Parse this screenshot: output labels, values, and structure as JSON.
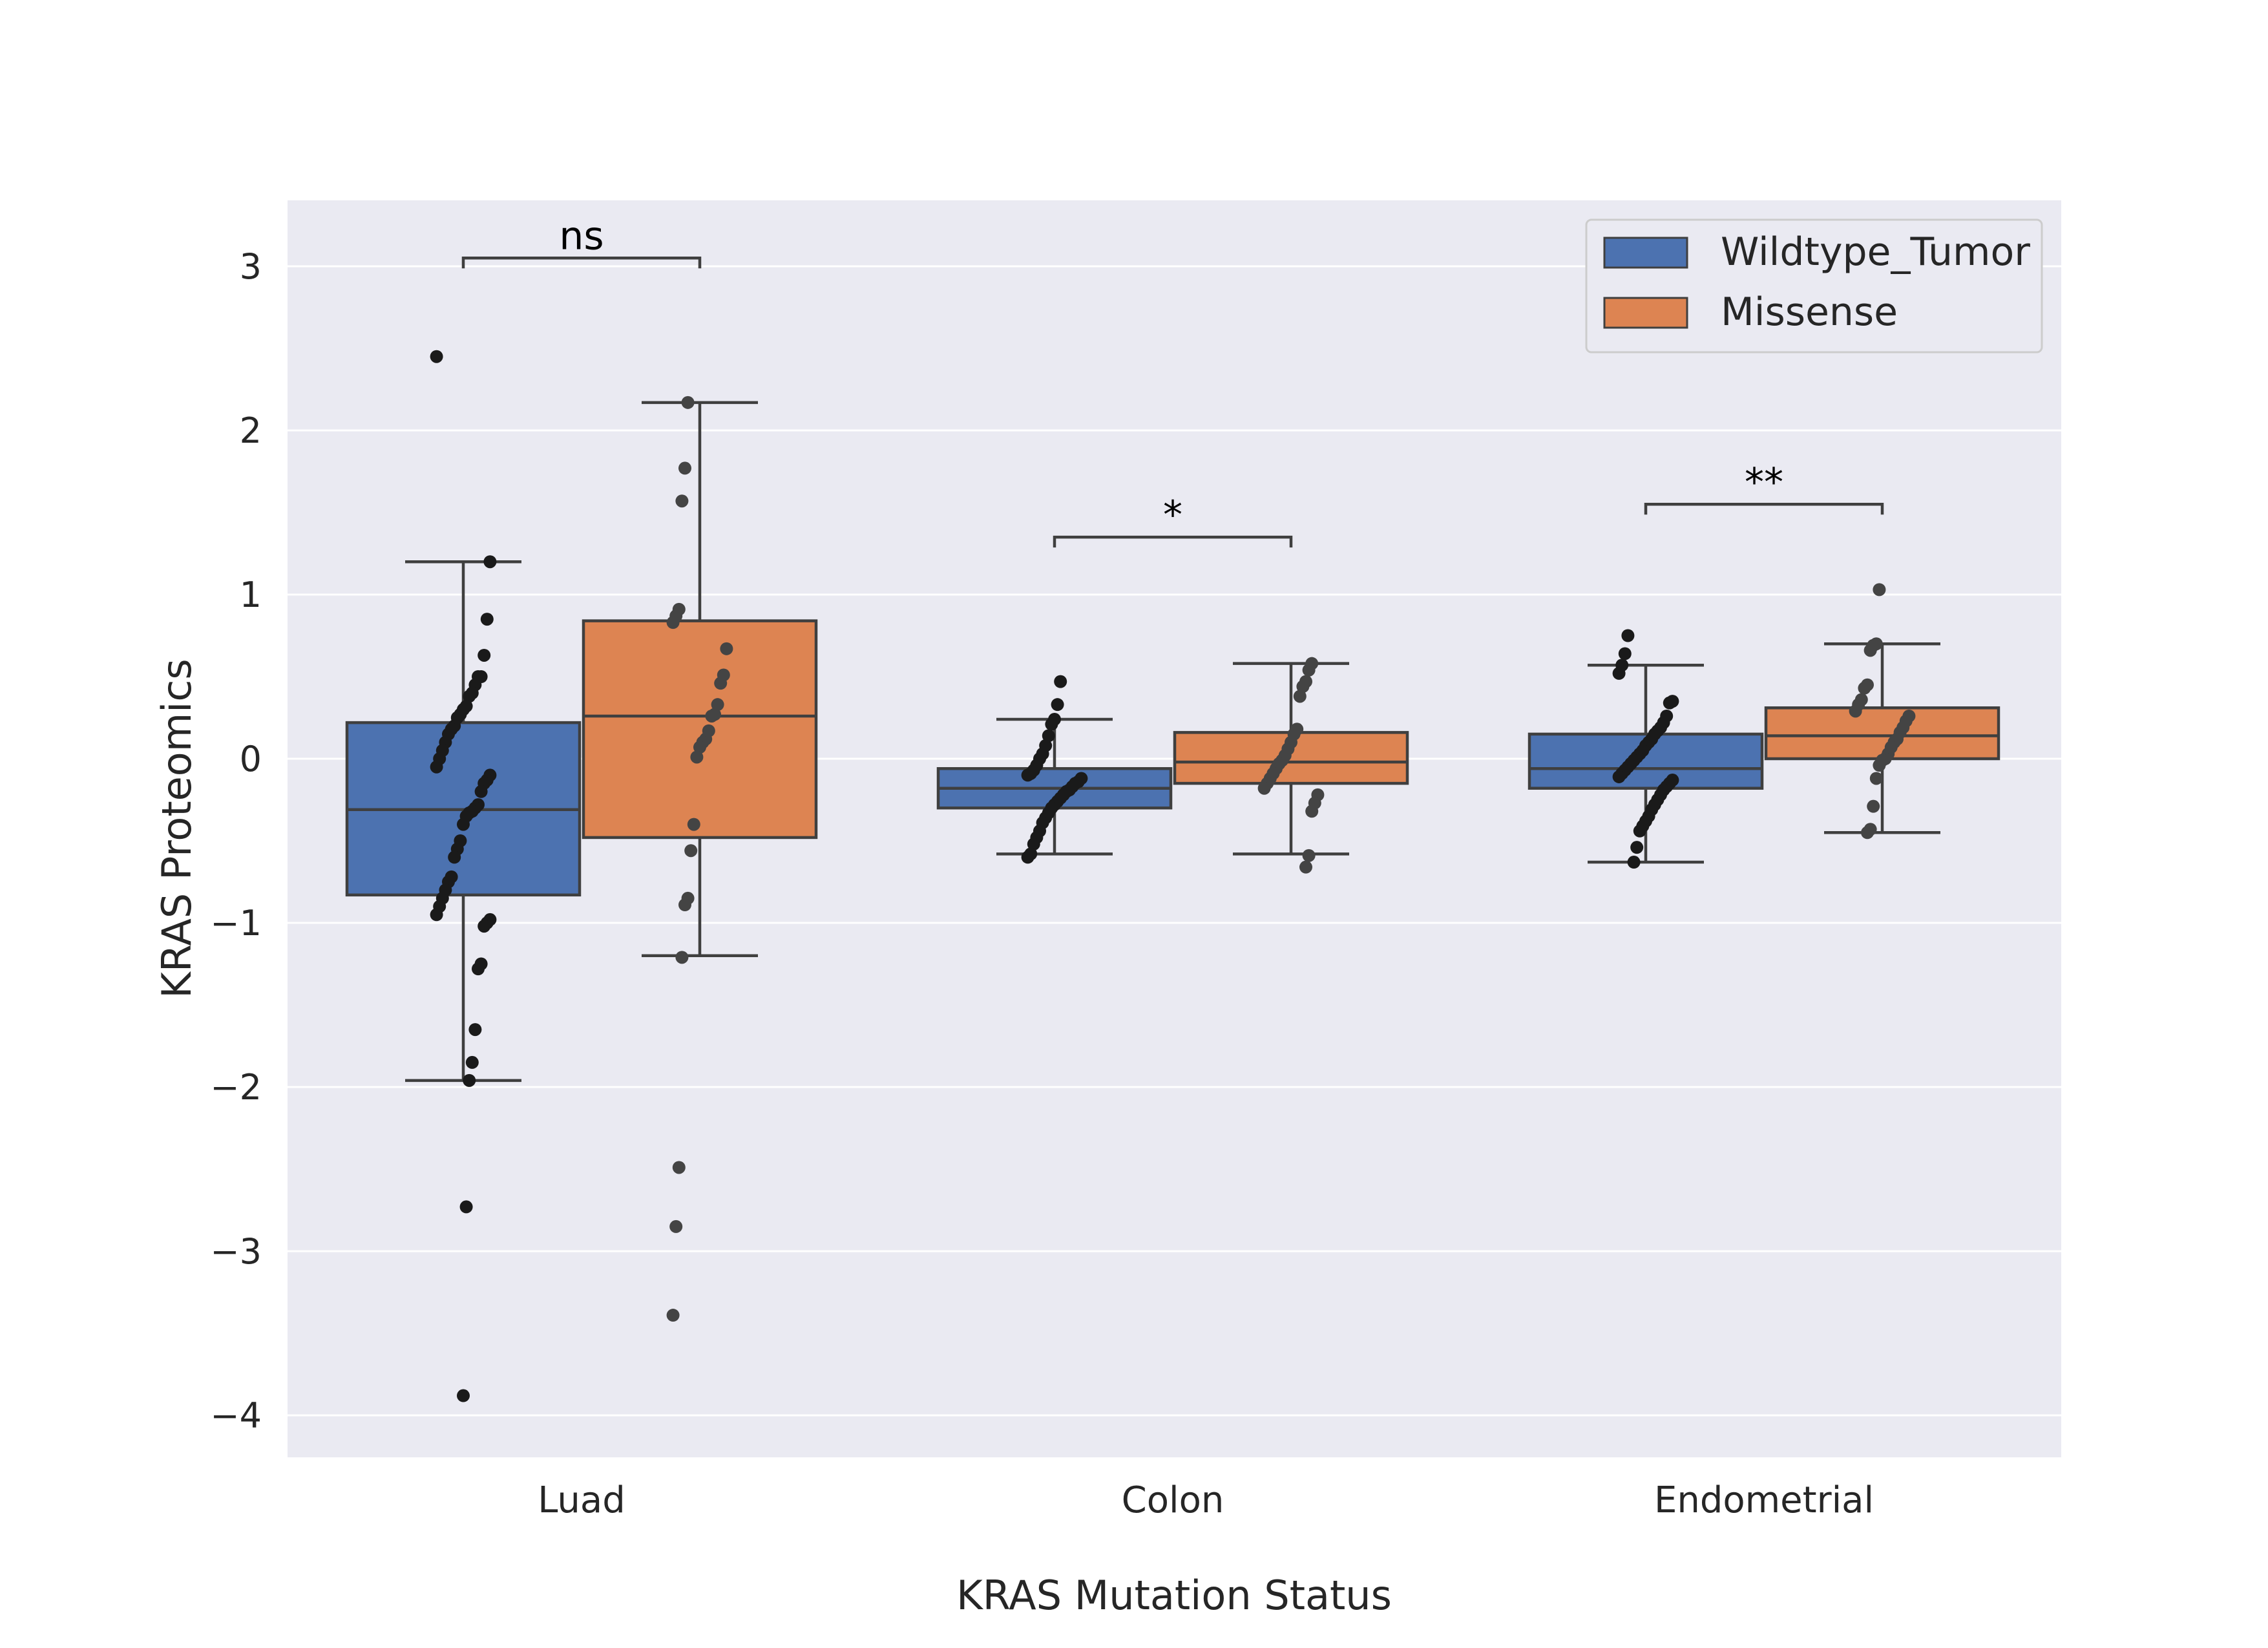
{
  "chart_data": {
    "type": "box",
    "xlabel": "KRAS Mutation Status",
    "ylabel": "KRAS Proteomics",
    "ylim": [
      -4.25,
      3.4
    ],
    "yticks": [
      -4,
      -3,
      -2,
      -1,
      0,
      1,
      2,
      3
    ],
    "ytick_labels": [
      "−4",
      "−3",
      "−2",
      "−1",
      "0",
      "1",
      "2",
      "3"
    ],
    "grid": true,
    "legend_position": "top-right",
    "categories": [
      "Luad",
      "Colon",
      "Endometrial"
    ],
    "series": [
      {
        "name": "Wildtype_Tumor",
        "color": "#4c72b0",
        "boxes": [
          {
            "category": "Luad",
            "q1": -0.83,
            "median": -0.31,
            "q3": 0.22,
            "whisker_low": -1.96,
            "whisker_high": 1.2,
            "points": [
              2.45,
              1.2,
              0.85,
              0.63,
              0.5,
              0.5,
              0.45,
              0.4,
              0.38,
              0.32,
              0.3,
              0.27,
              0.25,
              0.2,
              0.18,
              0.15,
              0.1,
              0.05,
              0.0,
              -0.05,
              -0.1,
              -0.13,
              -0.15,
              -0.2,
              -0.28,
              -0.3,
              -0.32,
              -0.33,
              -0.35,
              -0.4,
              -0.5,
              -0.55,
              -0.6,
              -0.72,
              -0.75,
              -0.8,
              -0.85,
              -0.9,
              -0.95,
              -0.98,
              -1.0,
              -1.02,
              -1.25,
              -1.28,
              -1.65,
              -1.85,
              -1.96,
              -2.73,
              -3.88
            ]
          },
          {
            "category": "Colon",
            "q1": -0.3,
            "median": -0.18,
            "q3": -0.06,
            "whisker_low": -0.58,
            "whisker_high": 0.24,
            "points": [
              0.47,
              0.33,
              0.24,
              0.21,
              0.14,
              0.08,
              0.03,
              0.0,
              -0.04,
              -0.07,
              -0.09,
              -0.1,
              -0.12,
              -0.14,
              -0.15,
              -0.17,
              -0.19,
              -0.2,
              -0.22,
              -0.24,
              -0.26,
              -0.28,
              -0.3,
              -0.33,
              -0.36,
              -0.39,
              -0.44,
              -0.48,
              -0.52,
              -0.58,
              -0.6
            ]
          },
          {
            "category": "Endometrial",
            "q1": -0.18,
            "median": -0.06,
            "q3": 0.15,
            "whisker_low": -0.63,
            "whisker_high": 0.57,
            "points": [
              0.75,
              0.64,
              0.57,
              0.52,
              0.35,
              0.34,
              0.26,
              0.22,
              0.19,
              0.17,
              0.15,
              0.12,
              0.1,
              0.08,
              0.05,
              0.03,
              0.01,
              -0.01,
              -0.03,
              -0.05,
              -0.07,
              -0.09,
              -0.11,
              -0.13,
              -0.15,
              -0.17,
              -0.19,
              -0.22,
              -0.25,
              -0.28,
              -0.31,
              -0.35,
              -0.38,
              -0.41,
              -0.44,
              -0.54,
              -0.63
            ]
          }
        ]
      },
      {
        "name": "Missense",
        "color": "#dd8452",
        "boxes": [
          {
            "category": "Luad",
            "q1": -0.48,
            "median": 0.26,
            "q3": 0.84,
            "whisker_low": -1.2,
            "whisker_high": 2.17,
            "points": [
              2.17,
              1.77,
              1.57,
              0.91,
              0.87,
              0.83,
              0.67,
              0.51,
              0.46,
              0.33,
              0.27,
              0.26,
              0.17,
              0.12,
              0.1,
              0.07,
              0.01,
              -0.4,
              -0.56,
              -0.85,
              -0.89,
              -1.21,
              -2.49,
              -2.85,
              -3.39
            ]
          },
          {
            "category": "Colon",
            "q1": -0.15,
            "median": -0.02,
            "q3": 0.16,
            "whisker_low": -0.58,
            "whisker_high": 0.58,
            "points": [
              0.58,
              0.54,
              0.47,
              0.44,
              0.38,
              0.18,
              0.15,
              0.1,
              0.06,
              0.02,
              -0.01,
              -0.03,
              -0.06,
              -0.09,
              -0.12,
              -0.15,
              -0.18,
              -0.22,
              -0.27,
              -0.32,
              -0.59,
              -0.66
            ]
          },
          {
            "category": "Endometrial",
            "q1": 0.0,
            "median": 0.14,
            "q3": 0.31,
            "whisker_low": -0.45,
            "whisker_high": 0.7,
            "points": [
              1.03,
              0.7,
              0.69,
              0.66,
              0.45,
              0.43,
              0.36,
              0.33,
              0.29,
              0.26,
              0.23,
              0.19,
              0.16,
              0.12,
              0.1,
              0.07,
              0.03,
              0.0,
              -0.01,
              -0.04,
              -0.12,
              -0.29,
              -0.43,
              -0.45
            ]
          }
        ]
      }
    ],
    "annotations": [
      {
        "category": "Luad",
        "text": "ns",
        "y": 3.05
      },
      {
        "category": "Colon",
        "text": "*",
        "y": 1.35
      },
      {
        "category": "Endometrial",
        "text": "**",
        "y": 1.55
      }
    ]
  }
}
